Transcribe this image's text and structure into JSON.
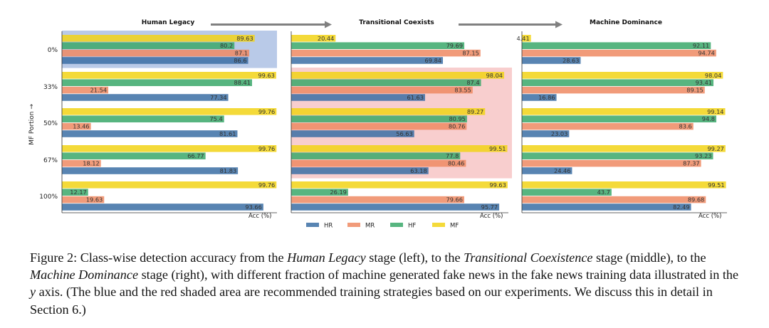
{
  "figure": {
    "ylabel": "MF Portion →",
    "xlabel": "Acc (%)",
    "stages": [
      "Human Legacy",
      "Transitional Coexists",
      "Machine Dominance"
    ],
    "row_labels": [
      "0%",
      "33%",
      "50%",
      "67%",
      "100%"
    ],
    "legend": [
      "HR",
      "MR",
      "HF",
      "MF"
    ]
  },
  "colors": {
    "HR": "#3b6ea5",
    "MR": "#ee8a63",
    "HF": "#3aa86a",
    "MF": "#f2d316",
    "blue_shade": "#7f9fd6",
    "red_shade": "#f6bdbd",
    "arrow": "#808080"
  },
  "chart_data": [
    {
      "type": "bar",
      "orientation": "horizontal",
      "title": "Human Legacy",
      "xlabel": "Acc (%)",
      "ylabel": "MF Portion →",
      "xlim": [
        0,
        100
      ],
      "categories": [
        "0%",
        "33%",
        "50%",
        "67%",
        "100%"
      ],
      "series": [
        {
          "name": "MF",
          "values": [
            89.63,
            99.63,
            99.76,
            99.76,
            99.76
          ]
        },
        {
          "name": "HF",
          "values": [
            80.2,
            88.41,
            75.4,
            66.77,
            12.17
          ]
        },
        {
          "name": "MR",
          "values": [
            87.1,
            21.54,
            13.46,
            18.12,
            19.63
          ]
        },
        {
          "name": "HR",
          "values": [
            86.6,
            77.34,
            81.61,
            81.83,
            93.66
          ]
        }
      ],
      "shaded_rows": [
        "0%"
      ],
      "shade": "blue"
    },
    {
      "type": "bar",
      "orientation": "horizontal",
      "title": "Transitional Coexists",
      "xlabel": "Acc (%)",
      "xlim": [
        0,
        100
      ],
      "categories": [
        "0%",
        "33%",
        "50%",
        "67%",
        "100%"
      ],
      "series": [
        {
          "name": "MF",
          "values": [
            20.44,
            98.04,
            89.27,
            99.51,
            99.63
          ]
        },
        {
          "name": "HF",
          "values": [
            79.69,
            87.4,
            80.95,
            77.8,
            26.19
          ]
        },
        {
          "name": "MR",
          "values": [
            87.15,
            83.55,
            80.76,
            80.46,
            79.66
          ]
        },
        {
          "name": "HR",
          "values": [
            69.84,
            61.63,
            56.63,
            63.18,
            95.77
          ]
        }
      ],
      "shaded_rows": [
        "33%",
        "50%",
        "67%"
      ],
      "shade": "red"
    },
    {
      "type": "bar",
      "orientation": "horizontal",
      "title": "Machine Dominance",
      "xlabel": "Acc (%)",
      "xlim": [
        0,
        100
      ],
      "categories": [
        "0%",
        "33%",
        "50%",
        "67%",
        "100%"
      ],
      "series": [
        {
          "name": "MF",
          "values": [
            4.41,
            98.04,
            99.14,
            99.27,
            99.51
          ]
        },
        {
          "name": "HF",
          "values": [
            92.11,
            93.41,
            94.8,
            93.23,
            43.7
          ]
        },
        {
          "name": "MR",
          "values": [
            94.74,
            89.15,
            83.6,
            87.37,
            89.68
          ]
        },
        {
          "name": "HR",
          "values": [
            28.63,
            16.86,
            23.03,
            24.46,
            82.49
          ]
        }
      ],
      "shaded_rows": [],
      "shade": ""
    }
  ],
  "caption": {
    "p1": "Figure 2: Class-wise detection accuracy from the ",
    "e1": "Human Legacy",
    "p2": " stage (left), to the ",
    "e2": "Transitional Coexistence",
    "p3": " stage (middle), to the ",
    "e3": "Machine Dominance",
    "p4": " stage (right), with different fraction of machine generated fake news in the fake news training data illustrated in the ",
    "e4": "y",
    "p5": " axis. (The blue and the red shaded area are recommended training strategies based on our experiments. We discuss this in detail in Section 6.)"
  }
}
